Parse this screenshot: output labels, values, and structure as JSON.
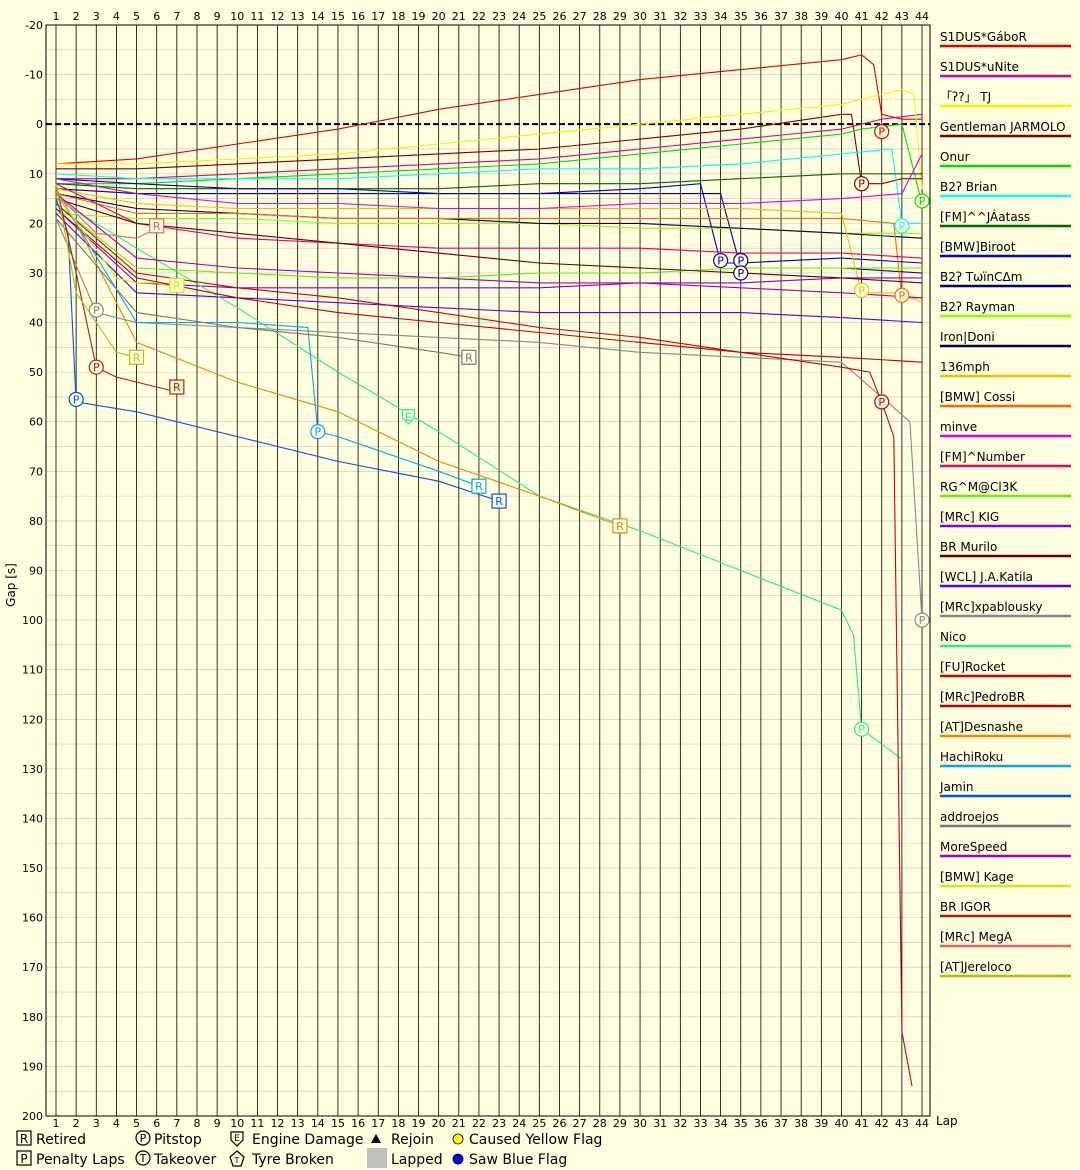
{
  "chart_data": {
    "type": "line",
    "xlabel": "Lap",
    "ylabel": "Gap [s]",
    "xlim": [
      1,
      44
    ],
    "ylim": [
      -20,
      200
    ],
    "y_inverted": true,
    "grid": true,
    "legend_placement": "right",
    "x_ticks": [
      1,
      2,
      3,
      4,
      5,
      6,
      7,
      8,
      9,
      10,
      11,
      12,
      13,
      14,
      15,
      16,
      17,
      18,
      19,
      20,
      21,
      22,
      23,
      24,
      25,
      26,
      27,
      28,
      29,
      30,
      31,
      32,
      33,
      34,
      35,
      36,
      37,
      38,
      39,
      40,
      41,
      42,
      43,
      44
    ],
    "y_ticks": [
      -20,
      -10,
      0,
      10,
      20,
      30,
      40,
      50,
      60,
      70,
      80,
      90,
      100,
      110,
      120,
      130,
      140,
      150,
      160,
      170,
      180,
      190,
      200
    ],
    "reference_line": 0,
    "series": [
      {
        "name": "S1DUS*GáboR",
        "color": "#dd0000",
        "x": [
          1,
          5,
          10,
          15,
          20,
          25,
          30,
          35,
          40,
          41,
          41.6,
          42,
          43,
          44
        ],
        "y": [
          8,
          7,
          4,
          1,
          -3,
          -6,
          -9,
          -11,
          -13,
          -14,
          -12,
          -2,
          -1,
          -1
        ],
        "markers": [
          {
            "type": "P",
            "lap": 42,
            "gap": 1.5
          }
        ]
      },
      {
        "name": "S1DUS*uNite",
        "color": "#e0008a",
        "x": [
          1,
          5,
          10,
          15,
          20,
          25,
          30,
          35,
          40,
          42,
          44
        ],
        "y": [
          11,
          11,
          10,
          9,
          8,
          7,
          5,
          3,
          1,
          -1,
          -2
        ]
      },
      {
        "name": "「ʔ?」 TJ",
        "color": "#f8f000",
        "x": [
          1,
          5,
          10,
          15,
          20,
          25,
          30,
          35,
          40,
          42,
          43,
          43.6,
          44
        ],
        "y": [
          8,
          8,
          7,
          6,
          4,
          2,
          0,
          -2,
          -4,
          -6,
          -7,
          -6,
          13
        ]
      },
      {
        "name": "Gentleman JARMOLO",
        "color": "#800000",
        "x": [
          1,
          5,
          10,
          15,
          20,
          25,
          30,
          35,
          40,
          40.5,
          41,
          42,
          43,
          44
        ],
        "y": [
          9,
          9,
          8,
          7,
          6,
          5,
          3,
          1,
          -2,
          -2,
          12,
          12,
          11,
          11
        ],
        "markers": [
          {
            "type": "P",
            "lap": 41,
            "gap": 12
          }
        ]
      },
      {
        "name": "Onur",
        "color": "#00dd00",
        "x": [
          1,
          5,
          10,
          15,
          20,
          25,
          30,
          35,
          40,
          41,
          43,
          44
        ],
        "y": [
          12,
          12,
          11,
          10,
          9,
          8,
          6,
          4,
          2,
          1,
          0,
          16
        ],
        "markers": [
          {
            "type": "P",
            "lap": 44,
            "gap": 15.5
          }
        ]
      },
      {
        "name": "B2ʔ Brian",
        "color": "#00ffff",
        "x": [
          1,
          5,
          10,
          15,
          20,
          25,
          30,
          35,
          40,
          42.5,
          43,
          44
        ],
        "y": [
          10,
          11,
          11,
          11,
          10,
          9,
          9,
          8,
          6,
          5,
          20,
          20
        ],
        "markers": [
          {
            "type": "P",
            "lap": 43,
            "gap": 20.5
          }
        ]
      },
      {
        "name": "[FM]^^JÁatass",
        "color": "#006600",
        "x": [
          1,
          5,
          10,
          15,
          20,
          25,
          30,
          35,
          40,
          44
        ],
        "y": [
          12,
          13,
          13,
          13,
          13,
          12,
          12,
          11,
          10,
          10
        ]
      },
      {
        "name": "[BMW]Biroot",
        "color": "#0000cc",
        "x": [
          1,
          5,
          10,
          15,
          20,
          25,
          30,
          33,
          34,
          35,
          40,
          44
        ],
        "y": [
          11,
          12,
          13,
          13,
          14,
          14,
          13,
          12,
          28,
          28,
          27,
          28
        ],
        "markers": [
          {
            "type": "P",
            "lap": 34,
            "gap": 27.5
          }
        ]
      },
      {
        "name": "B2ʔ TωïnCΔm",
        "color": "#000080",
        "x": [
          1,
          5,
          10,
          15,
          20,
          25,
          30,
          34,
          35,
          40,
          44
        ],
        "y": [
          13,
          14,
          14,
          14,
          14,
          14,
          14,
          14,
          29,
          29,
          30
        ],
        "markers": [
          {
            "type": "P",
            "lap": 35,
            "gap": 27.5
          },
          {
            "type": "P",
            "lap": 35,
            "gap": 30
          }
        ]
      },
      {
        "name": "B2ʔ Rayman",
        "color": "#88ff00",
        "x": [
          1,
          5,
          10,
          15,
          20,
          25,
          30,
          35,
          40,
          44
        ],
        "y": [
          18,
          19,
          19,
          20,
          20,
          20,
          21,
          21,
          22,
          22
        ]
      },
      {
        "name": "Iron|Doni",
        "color": "#000044",
        "x": [
          1,
          5,
          10,
          15,
          20,
          25,
          30,
          35,
          40,
          44
        ],
        "y": [
          14,
          17,
          18,
          19,
          19,
          20,
          20,
          21,
          22,
          23
        ]
      },
      {
        "name": "136mph",
        "color": "#f0c000",
        "x": [
          1,
          5,
          10,
          15,
          20,
          25,
          30,
          35,
          40,
          41,
          43,
          44
        ],
        "y": [
          13,
          16,
          17,
          17,
          17,
          17,
          17,
          17,
          18,
          34,
          34,
          36
        ],
        "markers": [
          {
            "type": "P",
            "lap": 41,
            "gap": 33.5
          }
        ]
      },
      {
        "name": "[BMW] Cossi",
        "color": "#ff6600",
        "x": [
          1,
          5,
          10,
          15,
          20,
          25,
          30,
          35,
          40,
          42.6,
          43,
          44
        ],
        "y": [
          14,
          18,
          18,
          19,
          19,
          19,
          19,
          19,
          19,
          20,
          35,
          35
        ],
        "markers": [
          {
            "type": "P",
            "lap": 43,
            "gap": 34.5
          }
        ]
      },
      {
        "name": "minve",
        "color": "#e000e0",
        "x": [
          1,
          5,
          10,
          15,
          20,
          25,
          30,
          35,
          40,
          43,
          44
        ],
        "y": [
          11,
          14,
          16,
          16,
          17,
          17,
          16,
          16,
          15,
          14,
          6
        ]
      },
      {
        "name": "[FM]^Number",
        "color": "#ee0066",
        "x": [
          1,
          5,
          10,
          15,
          20,
          25,
          30,
          35,
          40,
          44
        ],
        "y": [
          12,
          20,
          23,
          24,
          25,
          25,
          25,
          26,
          26,
          27
        ]
      },
      {
        "name": "RG^M@Cl3K",
        "color": "#66ee00",
        "x": [
          1,
          5,
          10,
          15,
          20,
          25,
          30,
          35,
          40,
          44
        ],
        "y": [
          16,
          29,
          30,
          31,
          31,
          30,
          30,
          29,
          29,
          29
        ]
      },
      {
        "name": "[MRc] KIG",
        "color": "#8800dd",
        "x": [
          1,
          5,
          10,
          15,
          20,
          25,
          30,
          35,
          40,
          44
        ],
        "y": [
          17,
          32,
          33,
          33,
          33,
          33,
          32,
          32,
          31,
          31
        ]
      },
      {
        "name": "BR Murilo",
        "color": "#660000",
        "x": [
          1,
          5,
          10,
          15,
          20,
          25,
          30,
          35,
          40,
          44
        ],
        "y": [
          15,
          20,
          22,
          24,
          26,
          28,
          29,
          30,
          31,
          32
        ]
      },
      {
        "name": "[WCL] J.A.Katila",
        "color": "#5500dd",
        "x": [
          1,
          5,
          10,
          15,
          20,
          25,
          30,
          35,
          40,
          44
        ],
        "y": [
          18,
          34,
          35,
          36,
          37,
          38,
          38,
          38,
          39,
          40
        ]
      },
      {
        "name": "[MRc]xpablousky",
        "color": "#888888",
        "x": [
          1,
          3,
          5,
          10,
          15,
          20,
          25,
          30,
          35,
          40,
          43.4,
          44
        ],
        "y": [
          19,
          38,
          40,
          41,
          42,
          43,
          44,
          46,
          47,
          48,
          60,
          100
        ],
        "markers": [
          {
            "type": "P",
            "lap": 44,
            "gap": 100
          },
          {
            "type": "P",
            "lap": 3,
            "gap": 37.5
          }
        ]
      },
      {
        "name": "Nico",
        "color": "#22ee88",
        "x": [
          1,
          5,
          10,
          15,
          20,
          25,
          30,
          35,
          40,
          40.6,
          41,
          42,
          43
        ],
        "y": [
          15,
          25,
          37,
          50,
          62,
          75,
          82,
          90,
          98,
          103,
          122,
          125,
          128
        ],
        "markers": [
          {
            "type": "P",
            "lap": 41,
            "gap": 122
          },
          {
            "type": "E",
            "lap": 18.5,
            "gap": 59
          }
        ]
      },
      {
        "name": "[FU]Rocket",
        "color": "#cc0000",
        "x": [
          1,
          5,
          10,
          15,
          20,
          25,
          30,
          35,
          40,
          41.4,
          42,
          42.6,
          43,
          43.5
        ],
        "y": [
          16,
          30,
          33,
          35,
          38,
          41,
          43,
          46,
          49,
          50,
          56,
          63,
          183,
          194
        ],
        "markers": [
          {
            "type": "P",
            "lap": 42,
            "gap": 56
          }
        ]
      },
      {
        "name": "[MRc]PedroBR",
        "color": "#bb0000",
        "x": [
          1,
          5,
          10,
          15,
          20,
          25,
          30,
          35,
          40,
          44
        ],
        "y": [
          17,
          31,
          35,
          38,
          40,
          42,
          44,
          46,
          47,
          48
        ]
      },
      {
        "name": "[AT]Desnashe",
        "color": "#ee8800",
        "x": [
          1,
          2,
          5,
          10,
          15,
          20,
          25,
          29
        ],
        "y": [
          13,
          20,
          44,
          52,
          58,
          68,
          75,
          81
        ],
        "markers": [
          {
            "type": "R",
            "lap": 29,
            "gap": 81
          }
        ]
      },
      {
        "name": "HachiRoku",
        "color": "#00aaee",
        "x": [
          1,
          2,
          5,
          10,
          13.5,
          14,
          15,
          20,
          22
        ],
        "y": [
          14,
          20,
          40,
          40,
          41,
          62,
          63,
          70,
          73
        ],
        "markers": [
          {
            "type": "P",
            "lap": 14,
            "gap": 62
          },
          {
            "type": "R",
            "lap": 22,
            "gap": 73
          }
        ]
      },
      {
        "name": "Jamin",
        "color": "#0055dd",
        "x": [
          1,
          1.6,
          2,
          5,
          10,
          15,
          20,
          23
        ],
        "y": [
          15,
          22,
          56,
          58,
          63,
          68,
          72,
          76
        ],
        "markers": [
          {
            "type": "P",
            "lap": 2,
            "gap": 55.5
          },
          {
            "type": "R",
            "lap": 23,
            "gap": 76
          }
        ]
      },
      {
        "name": "addroejos",
        "color": "#777777",
        "x": [
          1,
          5,
          10,
          15,
          20,
          21.5
        ],
        "y": [
          19,
          38,
          41,
          43,
          46,
          47
        ],
        "markers": [
          {
            "type": "R",
            "lap": 21.5,
            "gap": 47
          }
        ]
      },
      {
        "name": "MoreSpeed",
        "color": "#aa00aa",
        "x": [
          1,
          5,
          10,
          15,
          20,
          25,
          30,
          35,
          40,
          44
        ],
        "y": [
          14,
          27,
          29,
          30,
          31,
          32,
          32,
          33,
          34,
          35
        ]
      },
      {
        "name": "[BMW] Kage",
        "color": "#ccee00",
        "x": [
          1,
          4,
          5,
          6,
          7
        ],
        "y": [
          14,
          31,
          32,
          32,
          33
        ],
        "markers": [
          {
            "type": "R",
            "lap": 7,
            "gap": 32.5
          }
        ]
      },
      {
        "name": "BR IGOR",
        "color": "#aa2200",
        "x": [
          1,
          2,
          3,
          4,
          5,
          6,
          7
        ],
        "y": [
          12,
          30,
          49,
          51,
          52,
          53,
          54
        ],
        "markers": [
          {
            "type": "P",
            "lap": 3,
            "gap": 49
          },
          {
            "type": "R",
            "lap": 7,
            "gap": 53
          }
        ]
      },
      {
        "name": "[MRc] MegA",
        "color": "#dd6666",
        "x": [
          1,
          3,
          5,
          6
        ],
        "y": [
          14,
          22,
          23,
          21
        ],
        "markers": [
          {
            "type": "R",
            "lap": 6,
            "gap": 20.5
          }
        ]
      },
      {
        "name": "[AT]Jereloco",
        "color": "#bbbb00",
        "x": [
          1,
          2,
          3,
          4,
          5
        ],
        "y": [
          12,
          34,
          40,
          46,
          47
        ],
        "markers": [
          {
            "type": "R",
            "lap": 5,
            "gap": 47
          }
        ]
      }
    ]
  },
  "footer_legend": {
    "retired": "Retired",
    "penalty_laps": "Penalty Laps",
    "pitstop": "Pitstop",
    "takeover": "Takeover",
    "engine_damage": "Engine Damage",
    "tyre_broken": "Tyre Broken",
    "rejoin": "Rejoin",
    "lapped": "Lapped",
    "caused_yellow_flag": "Caused Yellow Flag",
    "saw_blue_flag": "Saw Blue Flag"
  },
  "colors": {
    "background": "#ffffe0",
    "grid": "#c8c8c8",
    "lap_line": "#000000"
  }
}
